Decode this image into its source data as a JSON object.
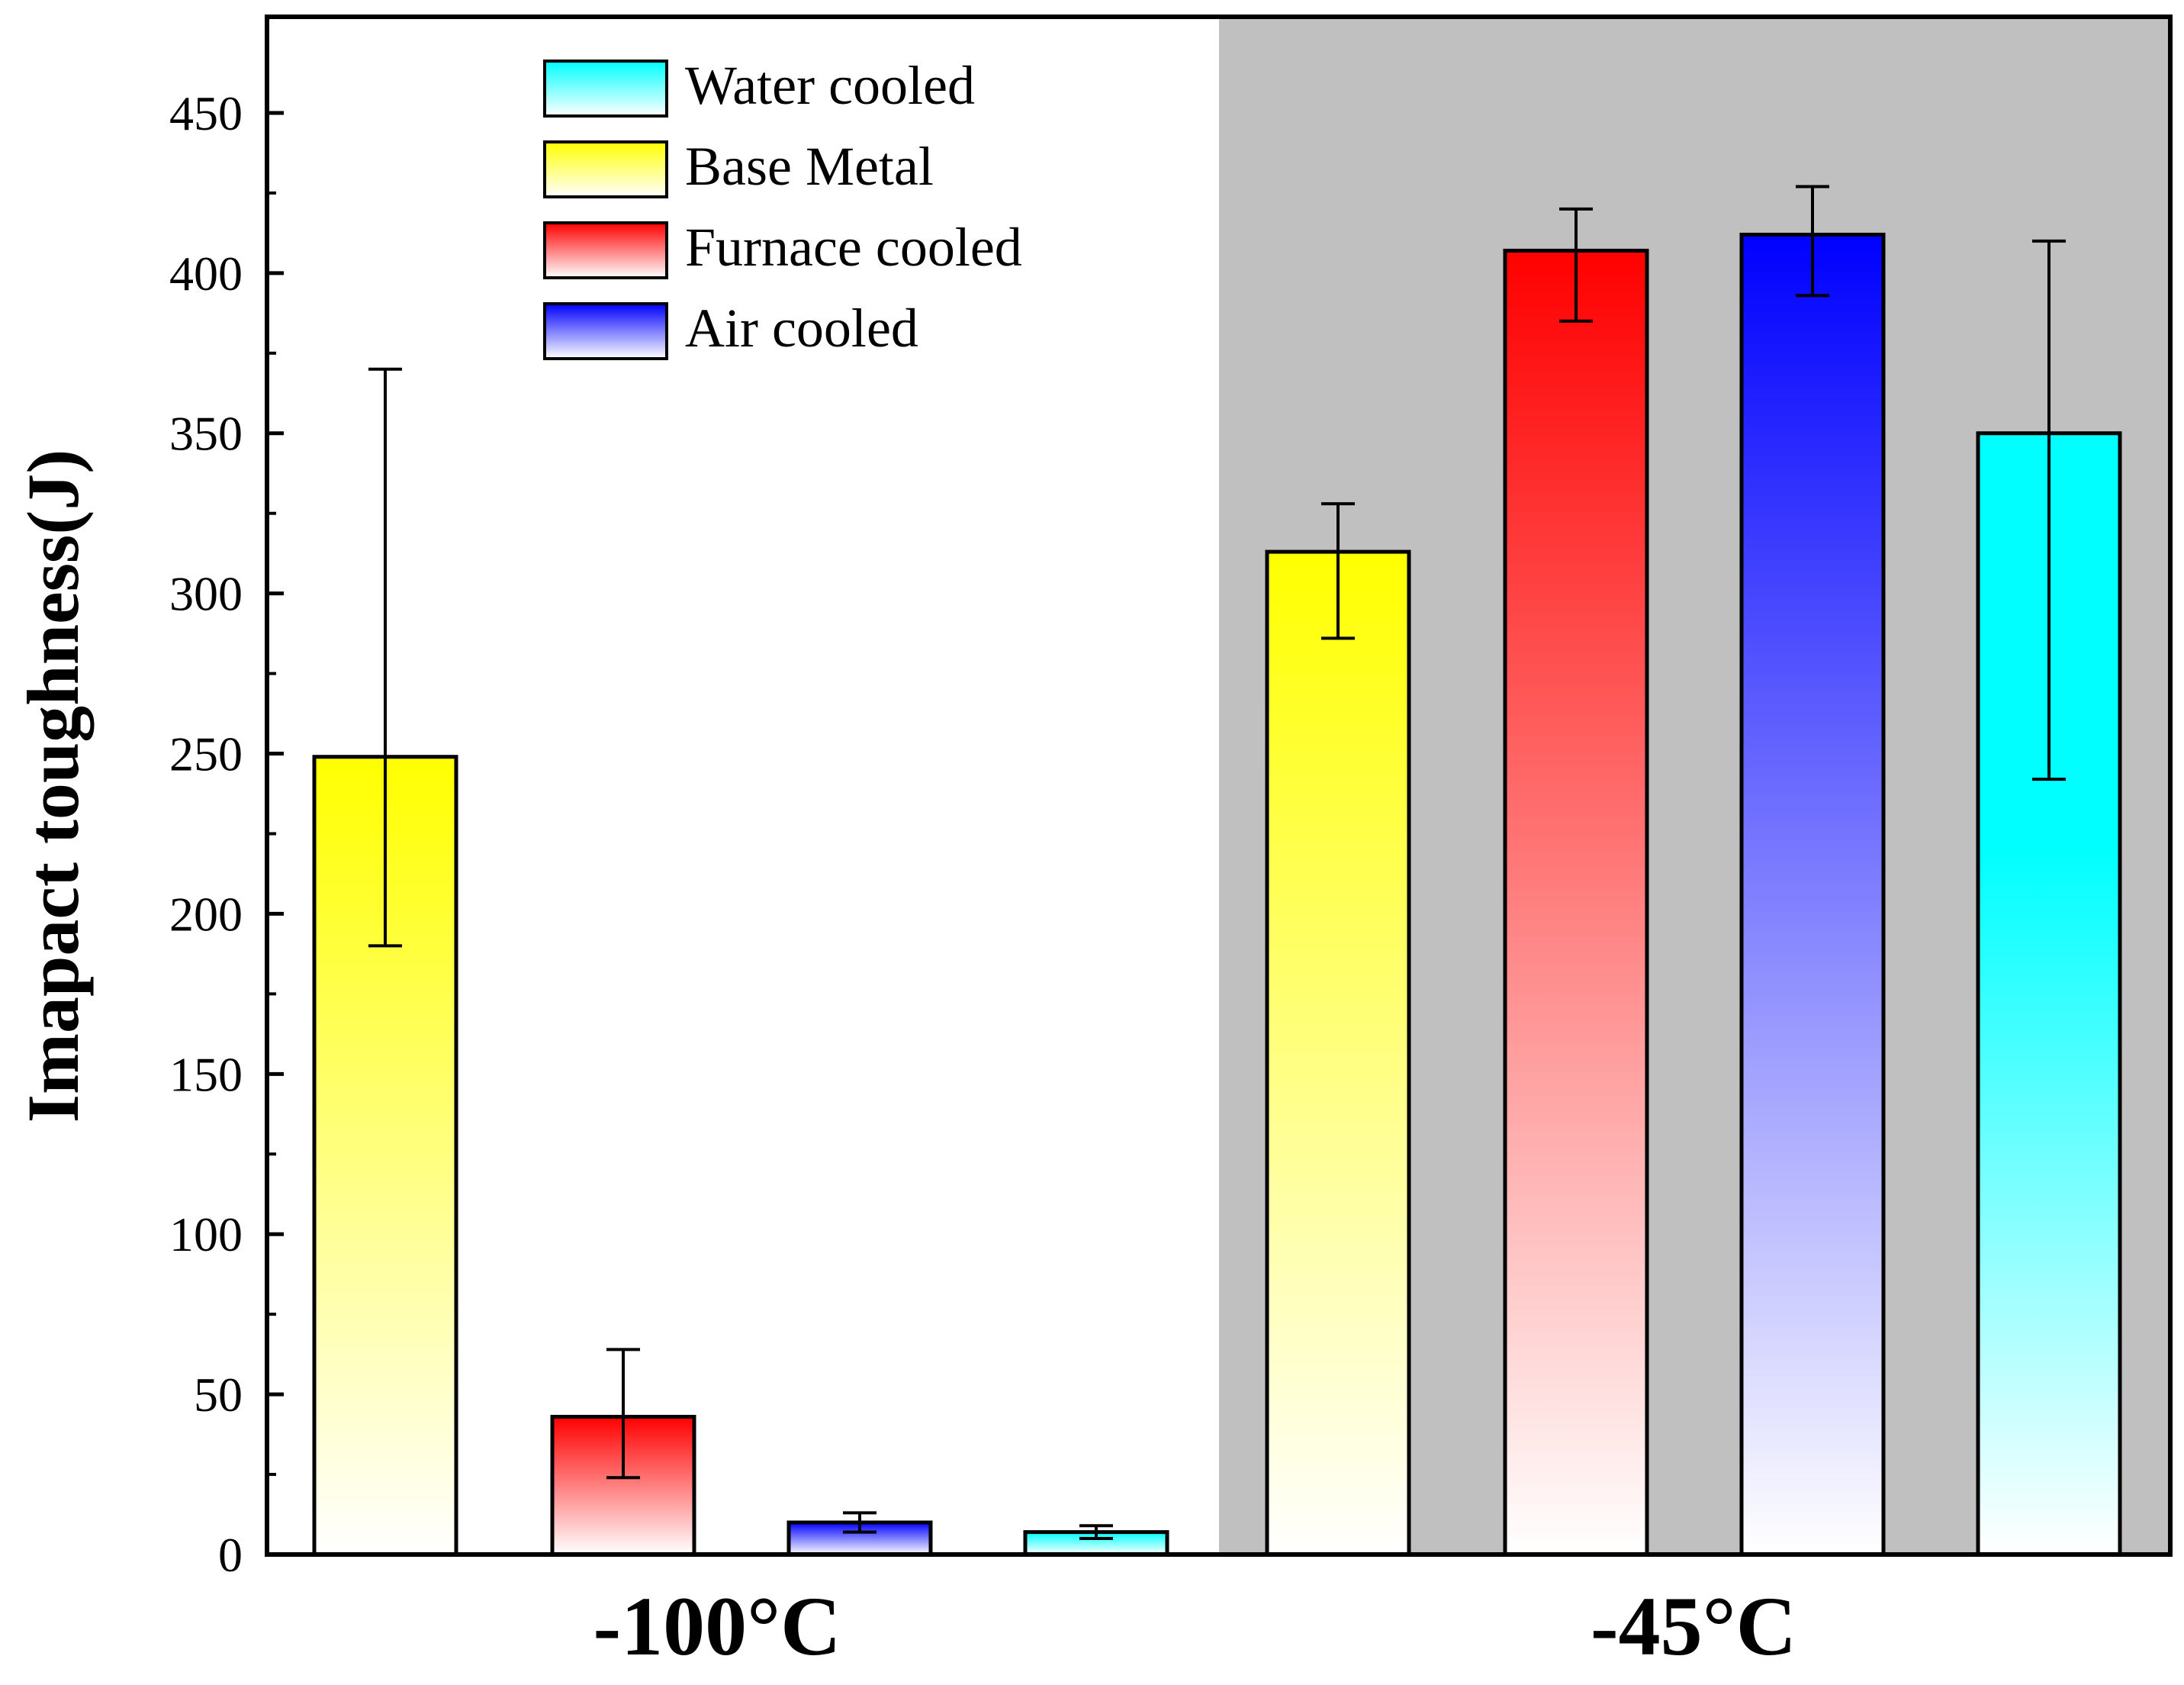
{
  "chart_data": {
    "type": "bar",
    "title": "",
    "xlabel": "",
    "ylabel": "Imapact toughness(J)",
    "ylim": [
      0,
      480
    ],
    "yticks": [
      0,
      50,
      100,
      150,
      200,
      250,
      300,
      350,
      400,
      450
    ],
    "categories": [
      "-100°C",
      "-45°C"
    ],
    "shaded_category": "-45°C",
    "legend_position": "top-left",
    "series": [
      {
        "name": "Base Metal",
        "color": "#ffff00",
        "values": [
          249,
          313
        ],
        "errors": [
          [
            190,
            370
          ],
          [
            286,
            328
          ]
        ]
      },
      {
        "name": "Furnace cooled",
        "color": "#ff0000",
        "values": [
          43,
          407
        ],
        "errors": [
          [
            24,
            64
          ],
          [
            385,
            420
          ]
        ]
      },
      {
        "name": "Air cooled",
        "color": "#0000ff",
        "values": [
          10,
          412
        ],
        "errors": [
          [
            7,
            13
          ],
          [
            393,
            427
          ]
        ]
      },
      {
        "name": "Water cooled",
        "color": "#00ffff",
        "values": [
          7,
          350
        ],
        "errors": [
          [
            5,
            9
          ],
          [
            242,
            410
          ]
        ]
      }
    ],
    "legend": [
      "Water cooled",
      "Base Metal",
      "Furnace cooled",
      "Air cooled"
    ]
  },
  "colors": {
    "shade": "#c0c0c0",
    "axis": "#000000"
  }
}
